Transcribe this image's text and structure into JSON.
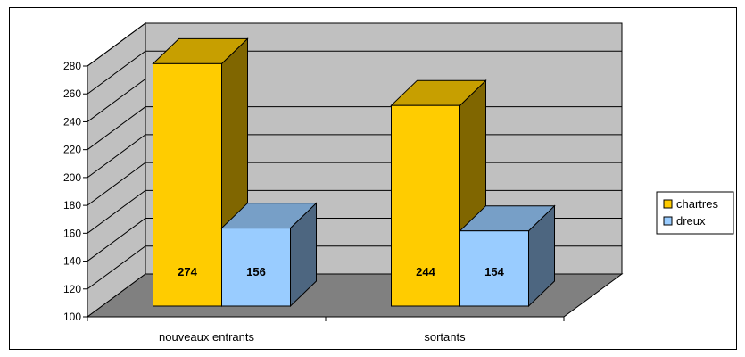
{
  "chart_data": {
    "type": "bar",
    "style": "3d-clustered-column",
    "categories": [
      "nouveaux entrants",
      "sortants"
    ],
    "series": [
      {
        "name": "chartres",
        "values": [
          274,
          244
        ],
        "color": "#FFCC00"
      },
      {
        "name": "dreux",
        "values": [
          156,
          154
        ],
        "color": "#99CCFF"
      }
    ],
    "title": "",
    "xlabel": "",
    "ylabel": "",
    "ylim": [
      100,
      280
    ],
    "yticks": [
      "100",
      "120",
      "140",
      "160",
      "180",
      "200",
      "220",
      "240",
      "260",
      "280"
    ],
    "grid": true,
    "legend": "right",
    "colors": {
      "wall": "#C0C0C0",
      "floor": "#808080",
      "grid": "#000000"
    }
  }
}
